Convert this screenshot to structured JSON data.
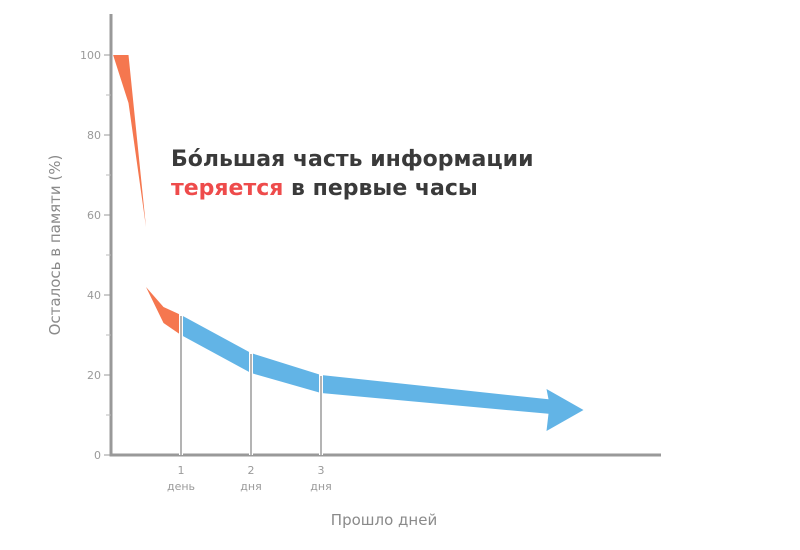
{
  "chart_data": {
    "type": "area",
    "ylabel": "Осталось в памяти (%)",
    "xlabel": "Прошло дней",
    "ylim": [
      0,
      100
    ],
    "xlim": [
      0,
      6.8
    ],
    "y_ticks": [
      0,
      20,
      40,
      60,
      80,
      100
    ],
    "y_minor_ticks": [
      10,
      30,
      50,
      70,
      90
    ],
    "x_ticks": [
      {
        "x": 1,
        "label": "1",
        "sublabel": "день"
      },
      {
        "x": 2,
        "label": "2",
        "sublabel": "дня"
      },
      {
        "x": 3,
        "label": "3",
        "sublabel": "дня"
      }
    ],
    "grid": false,
    "series": [
      {
        "color": "#f5774f",
        "segment": "first-day",
        "x": [
          0.03,
          0.25,
          0.5,
          0.5,
          0.75,
          1.0
        ],
        "y_top": [
          100,
          100,
          57,
          42,
          37,
          35
        ],
        "y_bottom": [
          100,
          88,
          57,
          42,
          33,
          30
        ]
      },
      {
        "color": "#62b4e6",
        "segment": "after-first-day",
        "x": [
          1.0,
          2.0,
          3.0,
          6.75
        ],
        "y_top": [
          35,
          25.5,
          20,
          13
        ],
        "y_bottom": [
          30,
          20.5,
          15.5,
          9.5
        ],
        "arrow": true
      }
    ],
    "annotation": {
      "line1": "Бóльшая часть информации",
      "line2_accent": "теряется",
      "line2_rest": " в первые часы",
      "accent_color": "#ee4b4b"
    }
  }
}
